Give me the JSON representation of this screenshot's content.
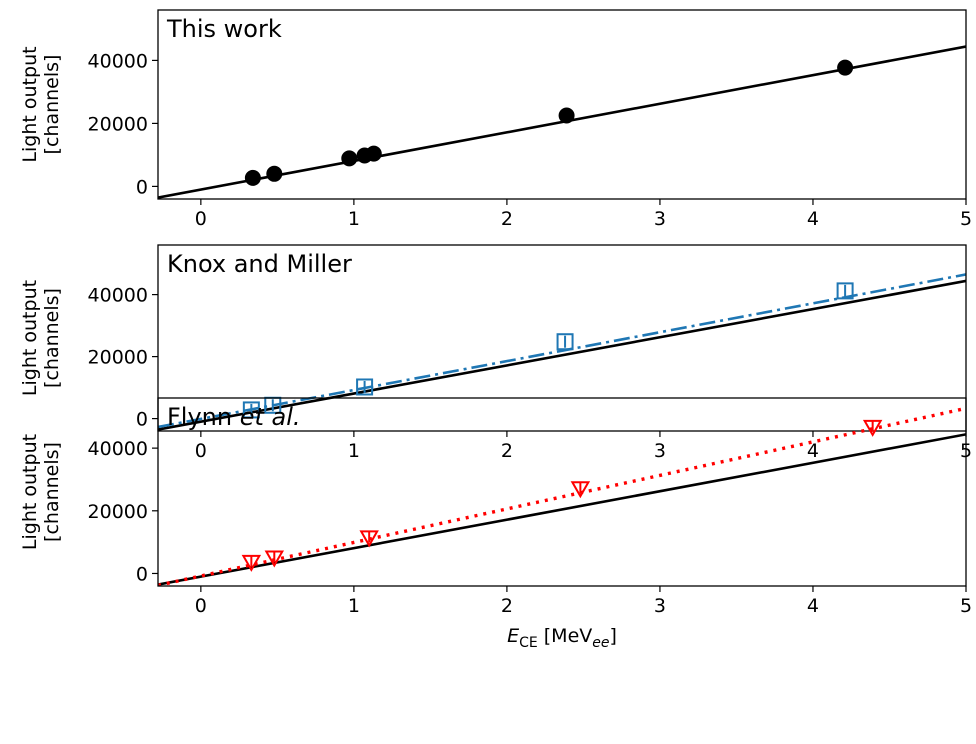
{
  "chart_data": [
    {
      "type": "scatter",
      "title": "This work",
      "title_emphasis": "",
      "ylabel_line1": "Light output",
      "ylabel_line2": "[channels]",
      "xlim": [
        -0.28,
        5.0
      ],
      "ylim": [
        -4000,
        56000
      ],
      "xticks": [
        "0",
        "1",
        "2",
        "3",
        "4",
        "5"
      ],
      "yticks": [
        "0",
        "20000",
        "40000"
      ],
      "reference_fit": {
        "slope": 9080,
        "intercept": -1000,
        "style": "solid",
        "color": "#000000"
      },
      "series": [
        {
          "marker": "filled-circle",
          "color": "#000000",
          "points": [
            {
              "x": 0.34,
              "y": 2700
            },
            {
              "x": 0.48,
              "y": 4000
            },
            {
              "x": 0.97,
              "y": 8900
            },
            {
              "x": 1.07,
              "y": 9800
            },
            {
              "x": 1.13,
              "y": 10400
            },
            {
              "x": 2.39,
              "y": 22500
            },
            {
              "x": 4.21,
              "y": 37700
            }
          ]
        }
      ]
    },
    {
      "type": "scatter",
      "title": "Knox and Miller",
      "title_emphasis": "",
      "ylabel_line1": "Light output",
      "ylabel_line2": "[channels]",
      "xlim": [
        -0.28,
        5.0
      ],
      "ylim": [
        -4000,
        56000
      ],
      "xticks": [
        "0",
        "1",
        "2",
        "3",
        "4",
        "5"
      ],
      "yticks": [
        "0",
        "20000",
        "40000"
      ],
      "reference_fit": {
        "slope": 9080,
        "intercept": -1000,
        "style": "solid",
        "color": "#000000"
      },
      "series": [
        {
          "marker": "open-square",
          "color": "#1f77b4",
          "fit": {
            "slope": 9320,
            "intercept": -100,
            "style": "dashdot"
          },
          "points": [
            {
              "x": 0.33,
              "y": 2800
            },
            {
              "x": 0.47,
              "y": 4300
            },
            {
              "x": 1.07,
              "y": 10200
            },
            {
              "x": 2.38,
              "y": 24800
            },
            {
              "x": 4.21,
              "y": 41200
            }
          ]
        }
      ]
    },
    {
      "type": "scatter",
      "title": "Flynn ",
      "title_emphasis": "et al.",
      "ylabel_line1": "Light output",
      "ylabel_line2": "[channels]",
      "xlabel_main": "E",
      "xlabel_sub": "CE",
      "xlabel_unit_pre": " [MeV",
      "xlabel_unit_sub": "ee",
      "xlabel_unit_post": "]",
      "xlim": [
        -0.28,
        5.0
      ],
      "ylim": [
        -4000,
        56000
      ],
      "xticks": [
        "0",
        "1",
        "2",
        "3",
        "4",
        "5"
      ],
      "yticks": [
        "0",
        "20000",
        "40000"
      ],
      "reference_fit": {
        "slope": 9080,
        "intercept": -1000,
        "style": "solid",
        "color": "#000000"
      },
      "series": [
        {
          "marker": "open-triangle-down",
          "color": "#ff0000",
          "fit": {
            "slope": 10700,
            "intercept": -800,
            "style": "dotted"
          },
          "points": [
            {
              "x": 0.33,
              "y": 3700
            },
            {
              "x": 0.48,
              "y": 5100
            },
            {
              "x": 1.1,
              "y": 11500
            },
            {
              "x": 2.48,
              "y": 27200
            },
            {
              "x": 4.39,
              "y": 46800
            }
          ]
        }
      ]
    }
  ]
}
